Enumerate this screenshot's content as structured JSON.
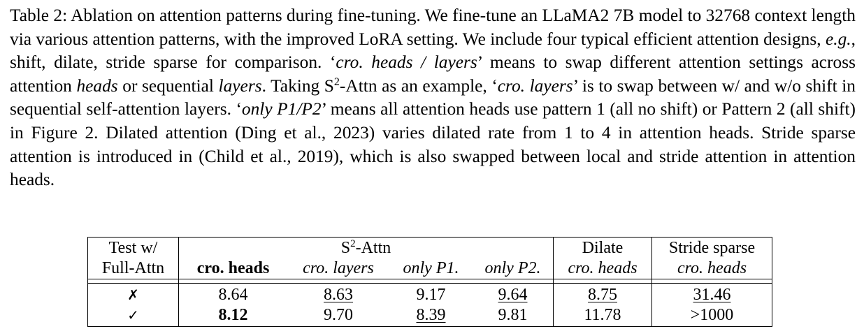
{
  "caption": {
    "label": "Table 2:",
    "p1": " Ablation on attention patterns during fine-tuning. We fine-tune an LLaMA2 7B model to 32768 context length via various attention patterns, with the improved LoRA setting. We include four typical efficient attention designs, ",
    "eg": "e.g.",
    "p2": ", shift, dilate, stride sparse for comparison. ‘",
    "cro_heads_layers": "cro. heads / layers",
    "p3": "’ means to swap different attention settings across attention ",
    "heads": "heads",
    "p4": " or sequential ",
    "layers": "layers",
    "p5": ". Taking S",
    "sup2": "2",
    "p6": "-Attn as an example, ‘",
    "cro_layers": "cro. layers",
    "p7": "’ is to swap between w/ and w/o shift in sequential self-attention layers. ‘",
    "only_p1p2": "only P1/P2",
    "p8": "’ means all attention heads use pattern 1 (all no shift) or Pattern 2 (all shift) in Figure 2. Dilated attention (Ding et al., 2023) varies dilated rate from 1 to 4 in attention heads. Stride sparse attention is introduced in (Child et al., 2019), which is also swapped between local and stride attention in attention heads."
  },
  "table": {
    "header": {
      "test_line1": "Test w/",
      "test_line2": "Full-Attn",
      "s2_prefix": "S",
      "s2_sup": "2",
      "s2_suffix": "-Attn",
      "dilate": "Dilate",
      "stride": "Stride sparse",
      "sub": [
        "cro. heads",
        "cro. layers",
        "only P1.",
        "only P2.",
        "cro. heads",
        "cro. heads"
      ]
    },
    "rows": [
      {
        "mark": "✗",
        "values": [
          "8.64",
          "8.63",
          "9.17",
          "9.64",
          "8.75",
          "31.46"
        ]
      },
      {
        "mark": "✓",
        "values": [
          "8.12",
          "9.70",
          "8.39",
          "9.81",
          "11.78",
          ">1000"
        ]
      }
    ]
  }
}
